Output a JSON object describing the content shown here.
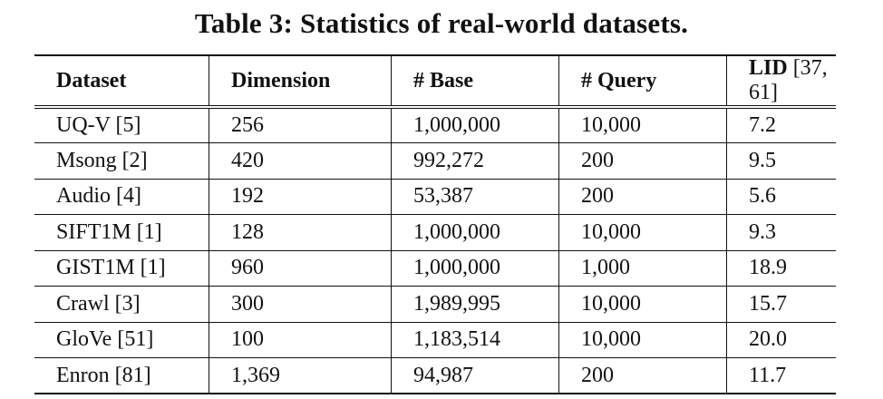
{
  "caption": "Table 3: Statistics of real-world datasets.",
  "table": {
    "headers": {
      "dataset": "Dataset",
      "dimension": "Dimension",
      "base": "# Base",
      "query": "# Query",
      "lid": "LID",
      "lid_cite": "[37, 61]"
    },
    "rows": [
      {
        "dataset": "UQ-V [5]",
        "dimension": "256",
        "base": "1,000,000",
        "query": "10,000",
        "lid": "7.2"
      },
      {
        "dataset": "Msong [2]",
        "dimension": "420",
        "base": "992,272",
        "query": "200",
        "lid": "9.5"
      },
      {
        "dataset": "Audio [4]",
        "dimension": "192",
        "base": "53,387",
        "query": "200",
        "lid": "5.6"
      },
      {
        "dataset": "SIFT1M [1]",
        "dimension": "128",
        "base": "1,000,000",
        "query": "10,000",
        "lid": "9.3"
      },
      {
        "dataset": "GIST1M [1]",
        "dimension": "960",
        "base": "1,000,000",
        "query": "1,000",
        "lid": "18.9"
      },
      {
        "dataset": "Crawl [3]",
        "dimension": "300",
        "base": "1,989,995",
        "query": "10,000",
        "lid": "15.7"
      },
      {
        "dataset": "GloVe [51]",
        "dimension": "100",
        "base": "1,183,514",
        "query": "10,000",
        "lid": "20.0"
      },
      {
        "dataset": "Enron [81]",
        "dimension": "1,369",
        "base": "94,987",
        "query": "200",
        "lid": "11.7"
      }
    ]
  }
}
